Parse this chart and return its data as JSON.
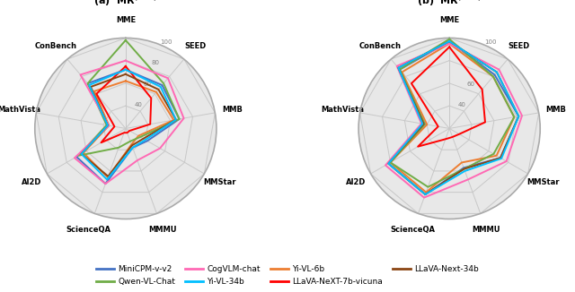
{
  "categories": [
    "MME",
    "SEED",
    "MMB",
    "MMStar",
    "MMMU",
    "ScienceQA",
    "AI2D",
    "MathVista",
    "ConBench"
  ],
  "r_min": 20,
  "r_max": 100,
  "r_ticks": [
    40,
    60,
    80,
    100
  ],
  "models": [
    "MiniCPM-v-v2",
    "Yi-VL-6b",
    "Qwen-VL-Chat",
    "LLaVA-NeXT-7b-vicuna",
    "CogVLM-chat",
    "LLaVA-Next-34b",
    "Yi-VL-34b"
  ],
  "colors": [
    "#4472C4",
    "#ED7D31",
    "#70AD47",
    "#FF0000",
    "#FF69B4",
    "#8B4513",
    "#00BFFF"
  ],
  "data_a": {
    "MiniCPM-v-v2": [
      72,
      70,
      68,
      42,
      38,
      72,
      70,
      35,
      72
    ],
    "Yi-VL-6b": [
      62,
      62,
      63,
      33,
      35,
      66,
      63,
      35,
      63
    ],
    "Qwen-VL-Chat": [
      98,
      72,
      68,
      35,
      32,
      38,
      68,
      37,
      72
    ],
    "LLaVA-NeXT-7b-vicuna": [
      75,
      55,
      42,
      24,
      24,
      24,
      45,
      30,
      60
    ],
    "CogVLM-chat": [
      80,
      78,
      72,
      55,
      50,
      72,
      72,
      35,
      82
    ],
    "LLaVA-Next-34b": [
      68,
      65,
      65,
      38,
      36,
      65,
      65,
      36,
      68
    ],
    "Yi-VL-34b": [
      72,
      68,
      65,
      40,
      38,
      68,
      65,
      36,
      70
    ]
  },
  "data_b": {
    "MiniCPM-v-v2": [
      97,
      82,
      82,
      72,
      57,
      82,
      82,
      42,
      88
    ],
    "Yi-VL-6b": [
      95,
      80,
      78,
      68,
      52,
      80,
      80,
      40,
      85
    ],
    "Qwen-VL-Chat": [
      99,
      80,
      78,
      65,
      58,
      75,
      80,
      42,
      88
    ],
    "LLaVA-NeXT-7b-vicuna": [
      92,
      65,
      52,
      30,
      28,
      30,
      52,
      30,
      72
    ],
    "CogVLM-chat": [
      95,
      88,
      85,
      78,
      68,
      85,
      85,
      45,
      92
    ],
    "LLaVA-Next-34b": [
      97,
      85,
      82,
      72,
      58,
      82,
      82,
      43,
      90
    ],
    "Yi-VL-34b": [
      97,
      85,
      82,
      73,
      60,
      82,
      82,
      44,
      90
    ]
  },
  "legend_row1": [
    "MiniCPM-v-v2",
    "Qwen-VL-Chat",
    "CogVLM-chat",
    "Yi-VL-34b"
  ],
  "legend_row2": [
    "Yi-VL-6b",
    "LLaVA-NeXT-7b-vicuna",
    "LLaVA-Next-34b"
  ],
  "legend_colors_row1": [
    "#4472C4",
    "#70AD47",
    "#FF69B4",
    "#00BFFF"
  ],
  "legend_colors_row2": [
    "#ED7D31",
    "#FF0000",
    "#8B4513"
  ]
}
